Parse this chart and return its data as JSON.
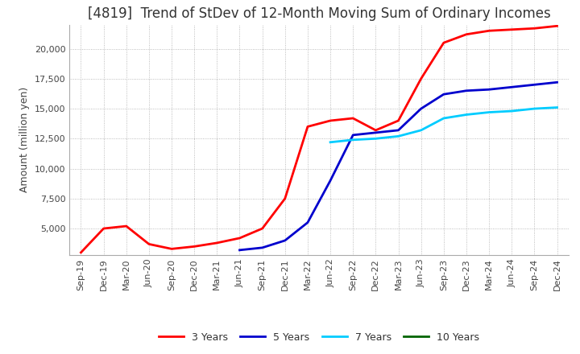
{
  "title": "[4819]  Trend of StDev of 12-Month Moving Sum of Ordinary Incomes",
  "ylabel": "Amount (million yen)",
  "ylim": [
    2800,
    22000
  ],
  "yticks": [
    5000,
    7500,
    10000,
    12500,
    15000,
    17500,
    20000
  ],
  "legend_labels": [
    "3 Years",
    "5 Years",
    "7 Years",
    "10 Years"
  ],
  "legend_colors": [
    "#ff0000",
    "#0000cd",
    "#00ccff",
    "#006400"
  ],
  "x_labels": [
    "Sep-19",
    "Dec-19",
    "Mar-20",
    "Jun-20",
    "Sep-20",
    "Dec-20",
    "Mar-21",
    "Jun-21",
    "Sep-21",
    "Dec-21",
    "Mar-22",
    "Jun-22",
    "Sep-22",
    "Dec-22",
    "Mar-23",
    "Jun-23",
    "Sep-23",
    "Dec-23",
    "Mar-24",
    "Jun-24",
    "Sep-24",
    "Dec-24"
  ],
  "series_3y": [
    3000,
    5000,
    5200,
    3700,
    3300,
    3500,
    3800,
    4200,
    5000,
    7500,
    13500,
    14000,
    14200,
    13200,
    14000,
    17500,
    20500,
    21200,
    21500,
    21600,
    21700,
    21900
  ],
  "series_5y": [
    null,
    null,
    null,
    null,
    null,
    null,
    null,
    3200,
    3400,
    4000,
    5500,
    9000,
    12800,
    13000,
    13200,
    15000,
    16200,
    16500,
    16600,
    16800,
    17000,
    17200
  ],
  "series_7y": [
    null,
    null,
    null,
    null,
    null,
    null,
    null,
    null,
    null,
    null,
    null,
    12200,
    12400,
    12500,
    12700,
    13200,
    14200,
    14500,
    14700,
    14800,
    15000,
    15100
  ],
  "series_10y": [
    null,
    null,
    null,
    null,
    null,
    null,
    null,
    null,
    null,
    null,
    null,
    null,
    null,
    null,
    null,
    null,
    null,
    null,
    null,
    null,
    null,
    null
  ],
  "background_color": "#ffffff",
  "grid_color": "#aaaaaa",
  "title_fontsize": 12,
  "tick_fontsize": 8,
  "label_fontsize": 9
}
